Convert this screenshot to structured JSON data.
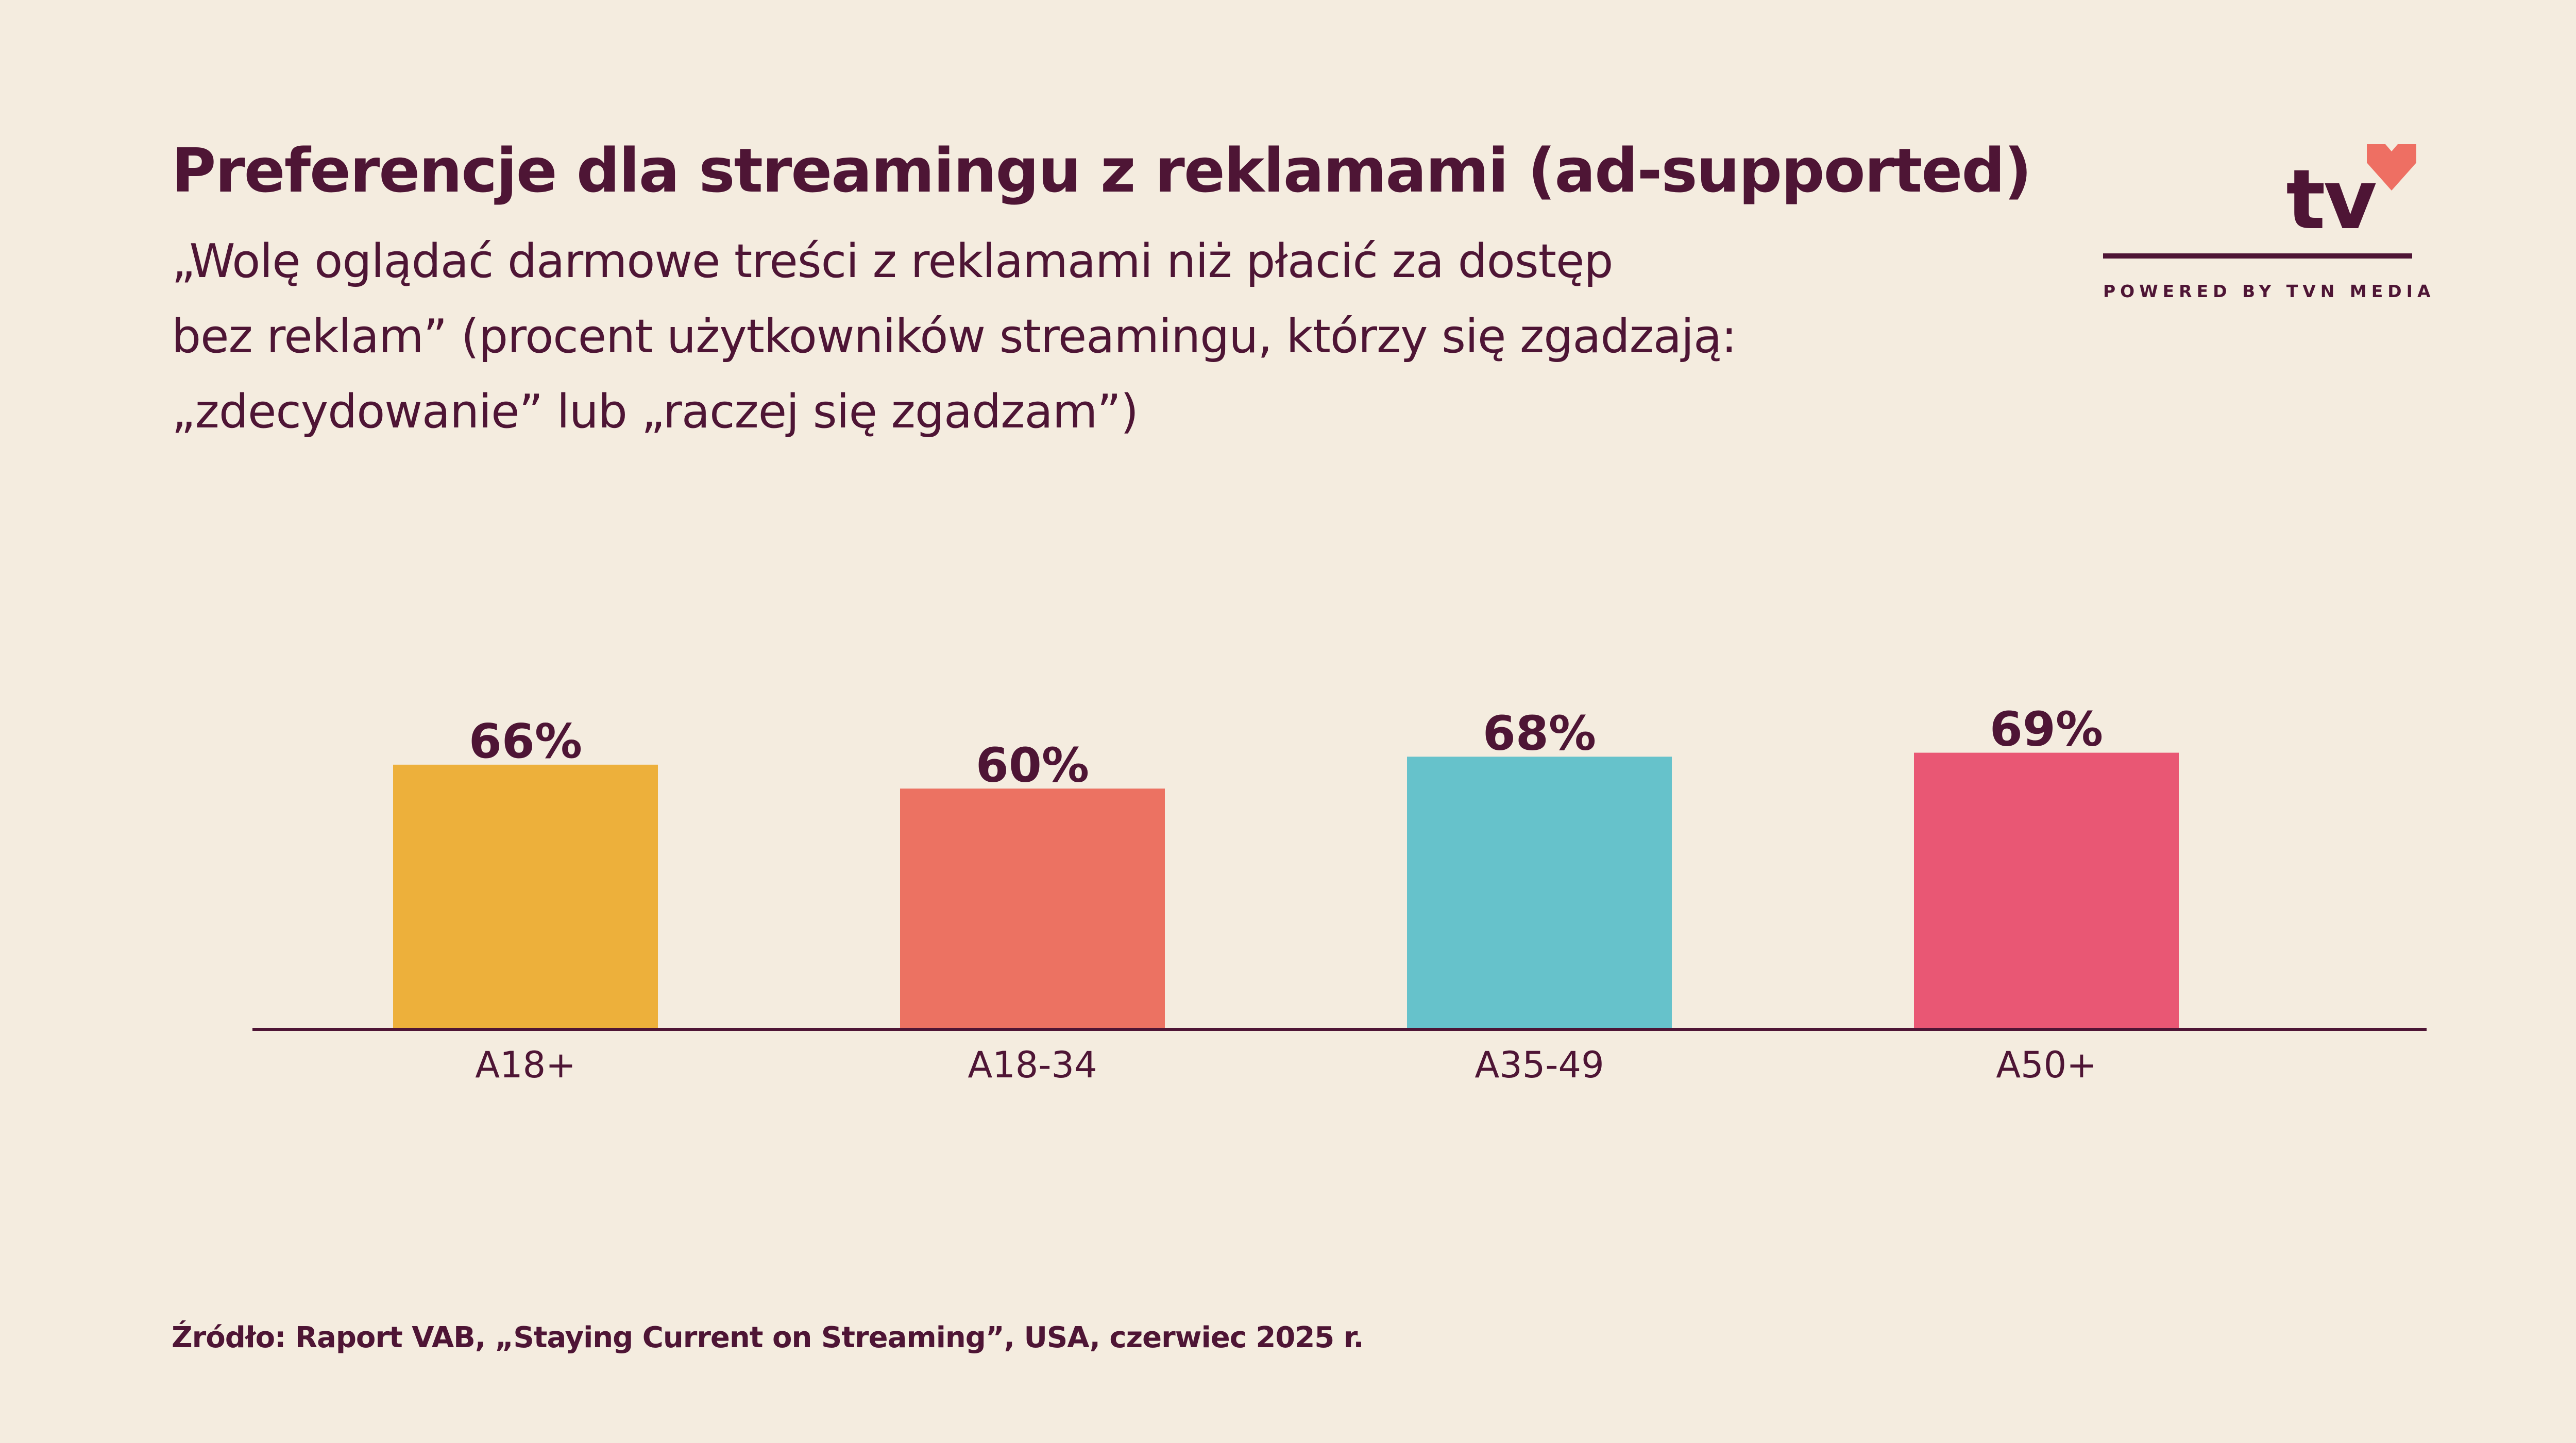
{
  "header": {
    "title": "Preferencje dla streamingu z reklamami (ad-supported)",
    "subtitle_lines": [
      "„Wolę oglądać darmowe treści z reklamami niż płacić za dostęp",
      "bez reklam” (procent użytkowników streamingu, którzy się zgadzają:",
      "„zdecydowanie” lub „raczej się zgadzam”)"
    ]
  },
  "logo": {
    "brand": "tv",
    "tagline": "POWERED BY TVN MEDIA"
  },
  "colors": {
    "text": "#4e1535",
    "background": "#f4ecdf",
    "heart": "#ee6f63"
  },
  "chart_data": {
    "type": "bar",
    "categories": [
      "A18+",
      "A18-34",
      "A35-49",
      "A50+"
    ],
    "values": [
      66,
      60,
      68,
      69
    ],
    "value_labels": [
      "66%",
      "60%",
      "68%",
      "69%"
    ],
    "colors": [
      "#edb03b",
      "#ec7262",
      "#66c2cb",
      "#e95774"
    ],
    "ylim": [
      0,
      100
    ],
    "grid": false,
    "legend": "none"
  },
  "footer": {
    "source": "Źródło: Raport VAB, „Staying Current on Streaming”, USA, czerwiec 2025 r."
  }
}
